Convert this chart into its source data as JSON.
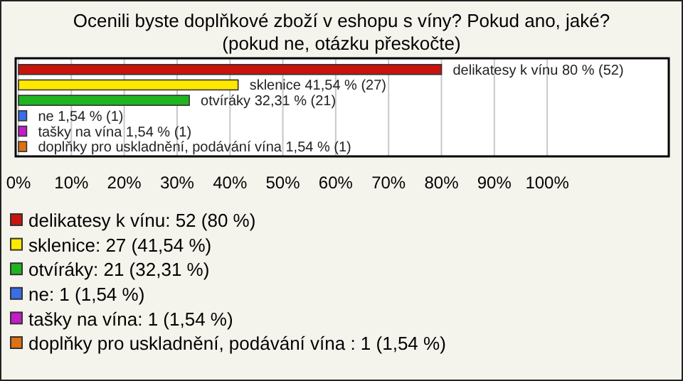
{
  "chart_data": {
    "type": "bar",
    "orientation": "horizontal",
    "title": "Ocenili byste doplňkové zboží v eshopu s víny? Pokud ano, jaké?",
    "subtitle": "(pokud ne, otázku přeskočte)",
    "categories": [
      null,
      null,
      null,
      null,
      null,
      null
    ],
    "series": [
      {
        "name": "delikatesy k vínu: 52 (80 %)",
        "color": "#c8140c",
        "values": [
          80,
          null,
          null,
          null,
          null,
          null
        ],
        "value_labels": [
          "delikatesy k vínu 80 % (52)",
          null,
          null,
          null,
          null,
          null
        ]
      },
      {
        "name": "sklenice: 27 (41,54 %)",
        "color": "#ffe800",
        "values": [
          null,
          41.54,
          null,
          null,
          null,
          null
        ],
        "value_labels": [
          null,
          "sklenice 41,54 % (27)",
          null,
          null,
          null,
          null
        ]
      },
      {
        "name": "otvíráky: 21 (32,31 %)",
        "color": "#1fb51f",
        "values": [
          null,
          null,
          32.31,
          null,
          null,
          null
        ],
        "value_labels": [
          null,
          null,
          "otvíráky 32,31 % (21)",
          null,
          null,
          null
        ]
      },
      {
        "name": "ne: 1 (1,54 %)",
        "color": "#3a6ee8",
        "values": [
          null,
          null,
          null,
          1.54,
          null,
          null
        ],
        "value_labels": [
          null,
          null,
          null,
          "ne 1,54 % (1)",
          null,
          null
        ]
      },
      {
        "name": "tašky na vína: 1 (1,54 %)",
        "color": "#c41cc8",
        "values": [
          null,
          null,
          null,
          null,
          1.54,
          null
        ],
        "value_labels": [
          null,
          null,
          null,
          null,
          "tašky na vína 1,54 % (1)",
          null
        ]
      },
      {
        "name": "doplňky pro uskladnění, podávání vína : 1 (1,54 %)",
        "color": "#e07010",
        "values": [
          null,
          null,
          null,
          null,
          null,
          1.54
        ],
        "value_labels": [
          null,
          null,
          null,
          null,
          null,
          "doplňky pro uskladnění, podávání vína  1,54 % (1)"
        ]
      }
    ],
    "xlim": [
      0,
      123
    ],
    "xticks": [
      {
        "value": 0,
        "label": "0%"
      },
      {
        "value": 10,
        "label": "10%"
      },
      {
        "value": 20,
        "label": "20%"
      },
      {
        "value": 30,
        "label": "30%"
      },
      {
        "value": 40,
        "label": "40%"
      },
      {
        "value": 50,
        "label": "50%"
      },
      {
        "value": 60,
        "label": "60%"
      },
      {
        "value": 70,
        "label": "70%"
      },
      {
        "value": 80,
        "label": "80%"
      },
      {
        "value": 90,
        "label": "90%"
      },
      {
        "value": 100,
        "label": "100%"
      }
    ],
    "grid": "x",
    "legend": "bottom"
  }
}
